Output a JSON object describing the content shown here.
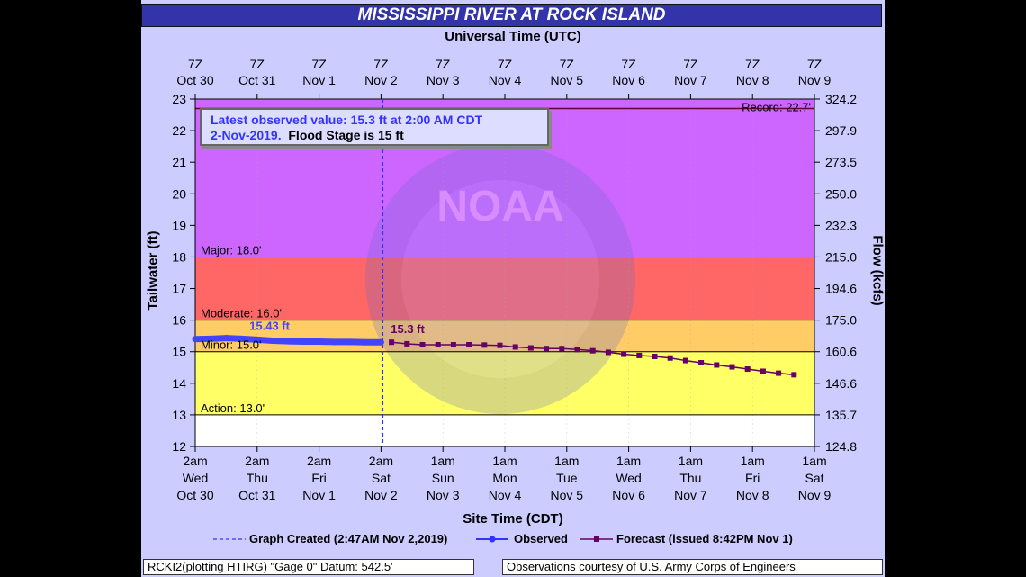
{
  "title": "MISSISSIPPI RIVER AT ROCK ISLAND",
  "chart_data": {
    "type": "line",
    "top_axis_title": "Universal Time (UTC)",
    "bottom_axis_title": "Site Time (CDT)",
    "ylabel_left": "Tailwater (ft)",
    "ylabel_right": "Flow (kcfs)",
    "ylim": [
      12,
      23
    ],
    "y_ticks": [
      12,
      13,
      14,
      15,
      16,
      17,
      18,
      19,
      20,
      21,
      22,
      23
    ],
    "flow_ticks": [
      "124.8",
      "135.7",
      "146.6",
      "160.6",
      "175.0",
      "194.6",
      "215.0",
      "232.3",
      "250.0",
      "273.5",
      "297.9",
      "324.2"
    ],
    "top_ticks": [
      {
        "hour": "7Z",
        "date": "Oct 30"
      },
      {
        "hour": "7Z",
        "date": "Oct 31"
      },
      {
        "hour": "7Z",
        "date": "Nov 1"
      },
      {
        "hour": "7Z",
        "date": "Nov 2"
      },
      {
        "hour": "7Z",
        "date": "Nov 3"
      },
      {
        "hour": "7Z",
        "date": "Nov 4"
      },
      {
        "hour": "7Z",
        "date": "Nov 5"
      },
      {
        "hour": "7Z",
        "date": "Nov 6"
      },
      {
        "hour": "7Z",
        "date": "Nov 7"
      },
      {
        "hour": "7Z",
        "date": "Nov 8"
      },
      {
        "hour": "7Z",
        "date": "Nov 9"
      }
    ],
    "bottom_ticks": [
      {
        "time": "2am",
        "day": "Wed",
        "date": "Oct 30"
      },
      {
        "time": "2am",
        "day": "Thu",
        "date": "Oct 31"
      },
      {
        "time": "2am",
        "day": "Fri",
        "date": "Nov 1"
      },
      {
        "time": "2am",
        "day": "Sat",
        "date": "Nov 2"
      },
      {
        "time": "1am",
        "day": "Sun",
        "date": "Nov 3"
      },
      {
        "time": "1am",
        "day": "Mon",
        "date": "Nov 4"
      },
      {
        "time": "1am",
        "day": "Tue",
        "date": "Nov 5"
      },
      {
        "time": "1am",
        "day": "Wed",
        "date": "Nov 6"
      },
      {
        "time": "1am",
        "day": "Thu",
        "date": "Nov 7"
      },
      {
        "time": "1am",
        "day": "Fri",
        "date": "Nov 8"
      },
      {
        "time": "1am",
        "day": "Sat",
        "date": "Nov 9"
      }
    ],
    "flood_categories": [
      {
        "label": "Action: 13.0'",
        "stage": 13.0,
        "color": "#ffff66"
      },
      {
        "label": "Minor: 15.0'",
        "stage": 15.0,
        "color": "#ffcc66"
      },
      {
        "label": "Moderate: 16.0'",
        "stage": 16.0,
        "color": "#ff6666"
      },
      {
        "label": "Major: 18.0'",
        "stage": 18.0,
        "color": "#cc66ff"
      }
    ],
    "below_action_color": "#ffffff",
    "record": {
      "label": "Record: 22.7'",
      "stage": 22.7
    },
    "info_box": {
      "line1": "Latest observed value: 15.3 ft at 2:00 AM CDT",
      "line2_prefix": "2-Nov-2019.",
      "line2_suffix": "Flood Stage is 15 ft"
    },
    "graph_created_day": 3.03,
    "observed": {
      "name": "Observed",
      "color": "#4444ff",
      "peak_label": "15.43 ft",
      "x_days": [
        0,
        0.25,
        0.5,
        0.75,
        1.0,
        1.25,
        1.5,
        1.75,
        2.0,
        2.25,
        2.5,
        2.75,
        3.0
      ],
      "y": [
        15.4,
        15.41,
        15.43,
        15.41,
        15.38,
        15.35,
        15.33,
        15.32,
        15.32,
        15.31,
        15.31,
        15.3,
        15.3
      ]
    },
    "forecast": {
      "name": "Forecast (issued 8:42PM Nov 1)",
      "color": "#660066",
      "start_label": "15.3 ft",
      "x_days": [
        3.17,
        3.42,
        3.67,
        3.92,
        4.17,
        4.42,
        4.67,
        4.92,
        5.17,
        5.42,
        5.67,
        5.92,
        6.17,
        6.42,
        6.67,
        6.92,
        7.17,
        7.42,
        7.67,
        7.92,
        8.17,
        8.42,
        8.67,
        8.92,
        9.17,
        9.42,
        9.67
      ],
      "y": [
        15.3,
        15.25,
        15.22,
        15.22,
        15.22,
        15.22,
        15.21,
        15.2,
        15.15,
        15.12,
        15.1,
        15.1,
        15.07,
        15.03,
        14.98,
        14.92,
        14.88,
        14.85,
        14.8,
        14.72,
        14.65,
        14.58,
        14.52,
        14.45,
        14.38,
        14.32,
        14.27
      ]
    },
    "legend": {
      "created": "Graph Created (2:47AM Nov 2,2019)",
      "observed": "Observed",
      "forecast": "Forecast (issued 8:42PM Nov 1)"
    }
  },
  "footer": {
    "left": "RCKI2(plotting HTIRG) \"Gage 0\" Datum: 542.5'",
    "right": "Observations courtesy of U.S. Army Corps of Engineers"
  }
}
